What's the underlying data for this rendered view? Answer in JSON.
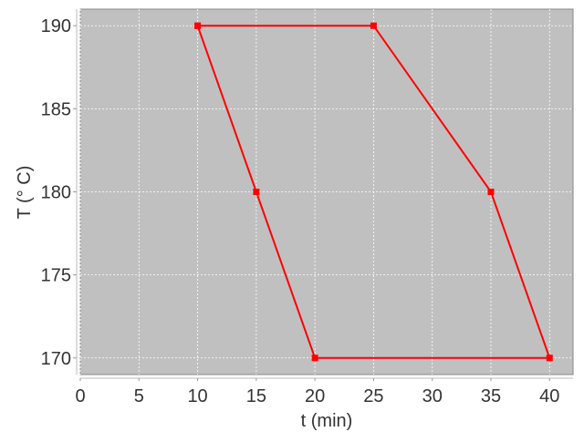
{
  "chart_data": {
    "type": "line",
    "title": "",
    "xlabel": "t (min)",
    "ylabel": "T (° C)",
    "xlim": [
      0,
      42
    ],
    "ylim": [
      169,
      191
    ],
    "xticks": [
      0,
      5,
      10,
      15,
      20,
      25,
      30,
      35,
      40
    ],
    "yticks": [
      170,
      175,
      180,
      185,
      190
    ],
    "grid": true,
    "legend": "none",
    "plot_background": "#c0c0c0",
    "series": [
      {
        "color": "#ff0000",
        "marker": "square",
        "x": [
          10,
          25,
          35,
          40,
          20,
          15,
          10
        ],
        "y": [
          190,
          190,
          180,
          170,
          170,
          180,
          190
        ]
      }
    ]
  }
}
